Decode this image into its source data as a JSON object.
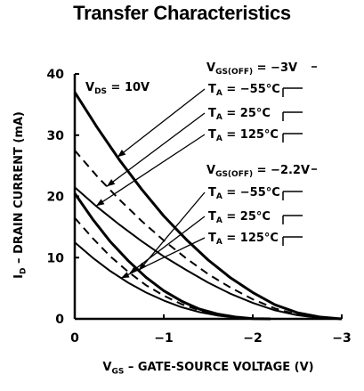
{
  "chart_data": {
    "type": "line",
    "title": "Transfer Characteristics",
    "xlabel": "GATE-SOURCE VOLTAGE (V)",
    "xlabel_symbol": "V",
    "xlabel_sub": "GS",
    "ylabel": "DRAIN CURRENT (mA)",
    "ylabel_symbol": "I",
    "ylabel_sub": "D",
    "xlim": [
      0,
      -3
    ],
    "ylim": [
      0,
      40
    ],
    "x_ticks": [
      0,
      -1,
      -2,
      -3
    ],
    "x_tick_labels": [
      "0",
      "−1",
      "−2",
      "−3"
    ],
    "y_ticks": [
      0,
      10,
      20,
      30,
      40
    ],
    "y_tick_labels": [
      "0",
      "10",
      "20",
      "30",
      "40"
    ],
    "grid": false,
    "condition": {
      "symbol": "V",
      "sub": "DS",
      "text": " = 10V"
    },
    "groups": [
      {
        "vgs_off": "V",
        "vgs_off_sub": "GS(OFF)",
        "vgs_off_value": " = −3V",
        "curves": [
          {
            "label": "T",
            "sub": "A",
            "text": " = −55°C",
            "style": "solid",
            "width": 3,
            "x": [
              0,
              -0.25,
              -0.5,
              -0.75,
              -1.0,
              -1.25,
              -1.5,
              -1.75,
              -2.0,
              -2.25,
              -2.5,
              -2.75,
              -3.0
            ],
            "y": [
              37,
              31.3,
              26.0,
              21.2,
              16.8,
              13.0,
              9.6,
              6.7,
              4.3,
              2.3,
              1.0,
              0.3,
              0
            ]
          },
          {
            "label": "T",
            "sub": "A",
            "text": " = 25°C",
            "style": "dashed",
            "width": 2,
            "x": [
              0,
              -0.25,
              -0.5,
              -0.75,
              -1.0,
              -1.25,
              -1.5,
              -1.75,
              -2.0,
              -2.25,
              -2.5,
              -2.75,
              -3.0
            ],
            "y": [
              27.5,
              23.3,
              19.5,
              16.0,
              12.8,
              9.9,
              7.3,
              5.1,
              3.2,
              1.7,
              0.7,
              0.2,
              0
            ]
          },
          {
            "label": "T",
            "sub": "A",
            "text": " = 125°C",
            "style": "solid",
            "width": 2,
            "x": [
              0,
              -0.25,
              -0.5,
              -0.75,
              -1.0,
              -1.25,
              -1.5,
              -1.75,
              -2.0,
              -2.25,
              -2.5,
              -2.75,
              -3.0
            ],
            "y": [
              21.5,
              18.3,
              15.4,
              12.7,
              10.2,
              8.0,
              5.9,
              4.1,
              2.6,
              1.4,
              0.6,
              0.15,
              0
            ]
          }
        ]
      },
      {
        "vgs_off": "V",
        "vgs_off_sub": "GS(OFF)",
        "vgs_off_value": " = −2.2V",
        "curves": [
          {
            "label": "T",
            "sub": "A",
            "text": " = −55°C",
            "style": "solid",
            "width": 3,
            "x": [
              0,
              -0.2,
              -0.4,
              -0.6,
              -0.8,
              -1.0,
              -1.2,
              -1.4,
              -1.6,
              -1.8,
              -2.0,
              -2.2
            ],
            "y": [
              20.5,
              16.3,
              12.6,
              9.5,
              6.8,
              4.6,
              2.9,
              1.6,
              0.8,
              0.3,
              0.05,
              0
            ]
          },
          {
            "label": "T",
            "sub": "A",
            "text": " = 25°C",
            "style": "dashed",
            "width": 2,
            "x": [
              0,
              -0.2,
              -0.4,
              -0.6,
              -0.8,
              -1.0,
              -1.2,
              -1.4,
              -1.6,
              -1.8,
              -2.0,
              -2.2
            ],
            "y": [
              16.5,
              13.2,
              10.2,
              7.7,
              5.5,
              3.8,
              2.4,
              1.4,
              0.7,
              0.25,
              0.05,
              0
            ]
          },
          {
            "label": "T",
            "sub": "A",
            "text": " = 125°C",
            "style": "solid",
            "width": 2,
            "x": [
              0,
              -0.2,
              -0.4,
              -0.6,
              -0.8,
              -1.0,
              -1.2,
              -1.4,
              -1.6,
              -1.8,
              -2.0,
              -2.2
            ],
            "y": [
              12.5,
              10.0,
              7.8,
              5.9,
              4.3,
              3.0,
              1.9,
              1.1,
              0.55,
              0.2,
              0.05,
              0
            ]
          }
        ]
      }
    ],
    "line_color": "#000000"
  }
}
